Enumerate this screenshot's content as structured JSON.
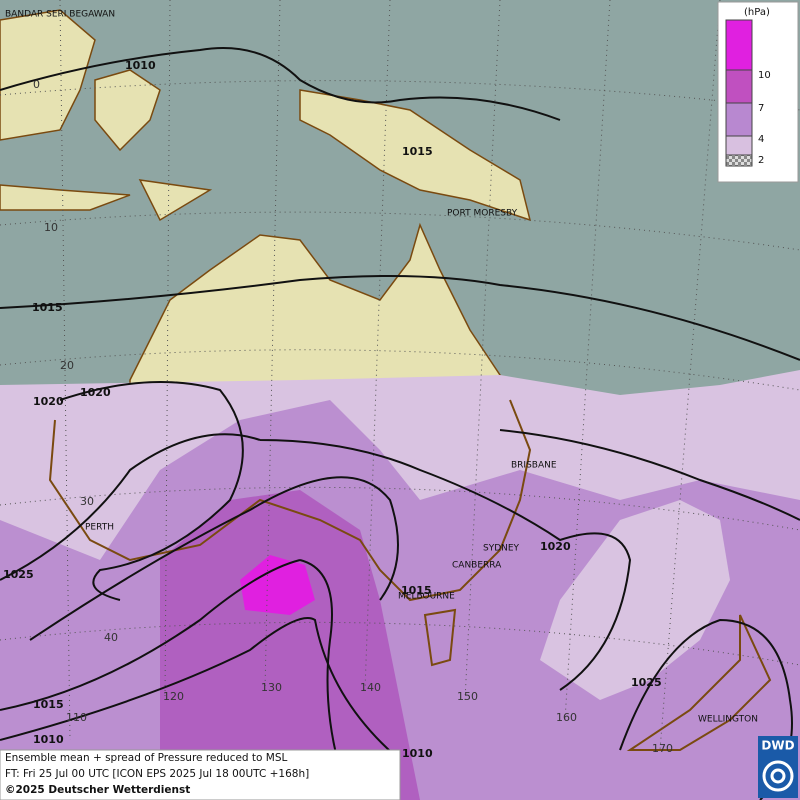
{
  "map": {
    "cities": [
      "BANDAR SERI BEGAWAN",
      "PORT MORESBY",
      "BRISBANE",
      "PERTH",
      "SYDNEY",
      "CANBERRA",
      "MELBOURNE",
      "WELLINGTON"
    ],
    "isobar_labels": [
      1010,
      1015,
      1015,
      1020,
      1020,
      1025,
      1015,
      1020,
      1025,
      1015,
      1010,
      1010
    ],
    "grid_labels": [
      0,
      10,
      20,
      30,
      40,
      110,
      120,
      130,
      140,
      150,
      160,
      170
    ]
  },
  "legend": {
    "unit": "(hPa)",
    "ticks": [
      10,
      7,
      4,
      2
    ]
  },
  "caption": {
    "lines": [
      "Ensemble mean + spread of Pressure reduced to MSL",
      "FT: Fri 25 Jul 00 UTC [ICON EPS 2025 Jul 18 00UTC +168h]"
    ],
    "copyright": "©2025 Deutscher Wetterdienst"
  },
  "logo": "DWD"
}
